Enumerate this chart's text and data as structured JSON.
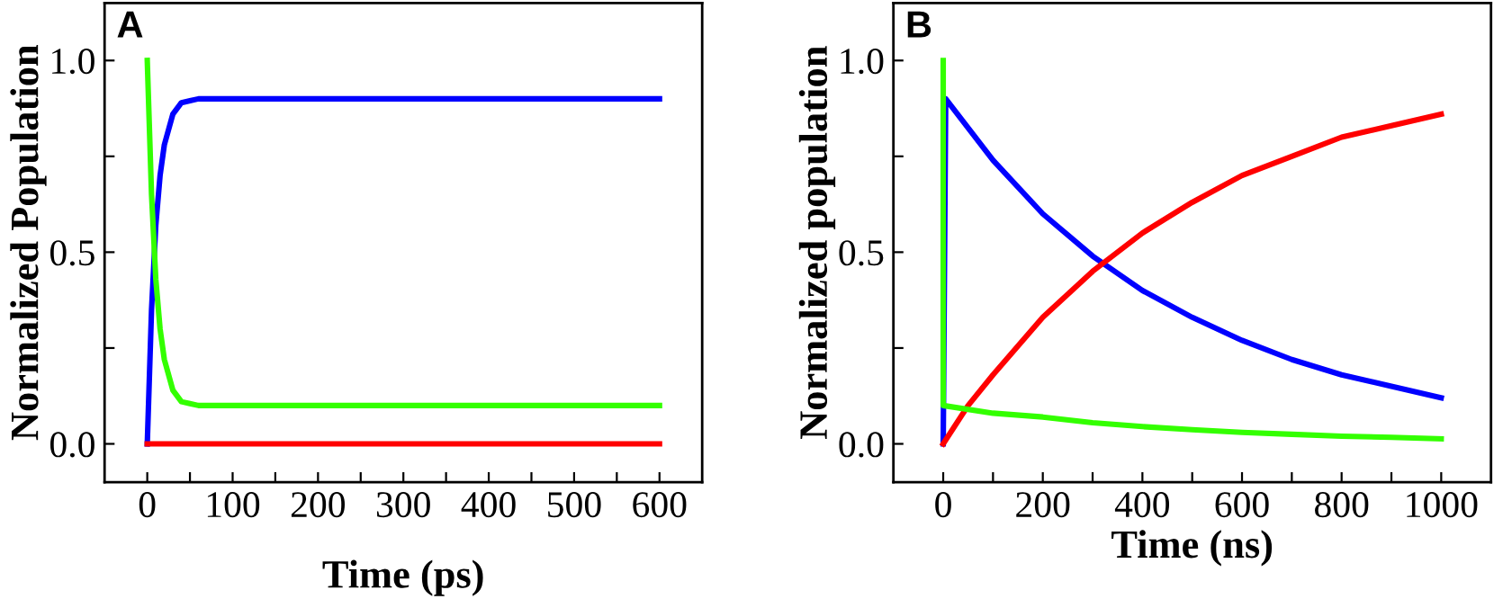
{
  "chart_data": [
    {
      "type": "line",
      "title": "A",
      "xlabel": "Time (ps)",
      "ylabel": "Normalized Population",
      "xlim": [
        -50,
        650
      ],
      "ylim": [
        -0.1,
        1.15
      ],
      "grid": false,
      "legend": false,
      "marker": "none",
      "line_style": "solid",
      "xticks": [
        0,
        {
          "value": 50,
          "label": null
        },
        100,
        {
          "value": 150,
          "label": null
        },
        200,
        {
          "value": 250,
          "label": null
        },
        300,
        {
          "value": 350,
          "label": null
        },
        400,
        {
          "value": 450,
          "label": null
        },
        500,
        {
          "value": 550,
          "label": null
        },
        600
      ],
      "yticks": [
        {
          "value": 0,
          "label": "0.0"
        },
        {
          "value": 0.25,
          "label": null
        },
        {
          "value": 0.5,
          "label": "0.5"
        },
        {
          "value": 0.75,
          "label": null
        },
        {
          "value": 1,
          "label": "1.0"
        }
      ],
      "series": [
        {
          "color": "#0000ff",
          "x": [
            0,
            5,
            10,
            15,
            20,
            30,
            40,
            50,
            60,
            80,
            100,
            200,
            400,
            600
          ],
          "values": [
            0,
            0.35,
            0.57,
            0.7,
            0.78,
            0.86,
            0.89,
            0.895,
            0.9,
            0.9,
            0.9,
            0.9,
            0.9,
            0.9
          ]
        },
        {
          "color": "#33ff00",
          "x": [
            0,
            5,
            10,
            15,
            20,
            30,
            40,
            50,
            60,
            80,
            100,
            200,
            400,
            600
          ],
          "values": [
            1,
            0.65,
            0.43,
            0.3,
            0.22,
            0.14,
            0.11,
            0.105,
            0.1,
            0.1,
            0.1,
            0.1,
            0.1,
            0.1
          ]
        },
        {
          "color": "#ff0000",
          "x": [
            0,
            100,
            200,
            300,
            400,
            500,
            600
          ],
          "values": [
            0,
            0,
            0,
            0,
            0,
            0,
            0
          ]
        }
      ]
    },
    {
      "type": "line",
      "title": "B",
      "xlabel": "Time (ns)",
      "ylabel": "Normalized population",
      "xlim": [
        -100,
        1100
      ],
      "ylim": [
        -0.1,
        1.15
      ],
      "grid": false,
      "legend": false,
      "marker": "none",
      "line_style": "solid",
      "xticks": [
        0,
        {
          "value": 100,
          "label": null
        },
        200,
        {
          "value": 300,
          "label": null
        },
        400,
        {
          "value": 500,
          "label": null
        },
        600,
        {
          "value": 700,
          "label": null
        },
        800,
        {
          "value": 900,
          "label": null
        },
        1000
      ],
      "yticks": [
        {
          "value": 0,
          "label": "0.0"
        },
        {
          "value": 0.25,
          "label": null
        },
        {
          "value": 0.5,
          "label": "0.5"
        },
        {
          "value": 0.75,
          "label": null
        },
        {
          "value": 1,
          "label": "1.0"
        }
      ],
      "series": [
        {
          "color": "#0000ff",
          "x": [
            0,
            5,
            100,
            200,
            300,
            400,
            500,
            600,
            700,
            800,
            900,
            1000
          ],
          "values": [
            0,
            0.9,
            0.74,
            0.6,
            0.49,
            0.4,
            0.33,
            0.27,
            0.22,
            0.18,
            0.15,
            0.12
          ]
        },
        {
          "color": "#ff0000",
          "x": [
            0,
            50,
            100,
            200,
            300,
            400,
            500,
            600,
            700,
            800,
            900,
            1000
          ],
          "values": [
            0,
            0.1,
            0.18,
            0.33,
            0.45,
            0.55,
            0.63,
            0.7,
            0.75,
            0.8,
            0.83,
            0.86
          ]
        },
        {
          "color": "#33ff00",
          "x": [
            0,
            0,
            100,
            200,
            300,
            400,
            500,
            600,
            700,
            800,
            900,
            1000
          ],
          "values": [
            1,
            0.1,
            0.08,
            0.07,
            0.055,
            0.045,
            0.037,
            0.03,
            0.025,
            0.02,
            0.017,
            0.013
          ]
        }
      ]
    }
  ]
}
